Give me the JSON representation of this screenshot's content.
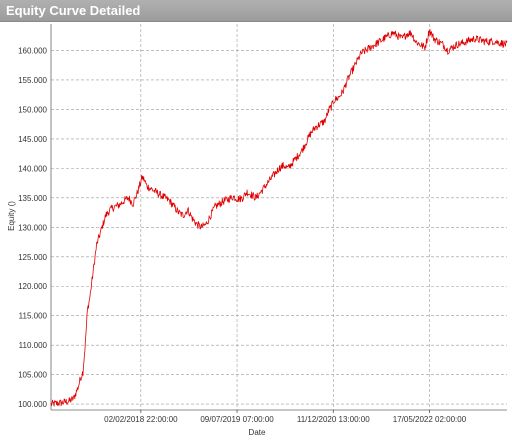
{
  "window": {
    "title": "Equity Curve Detailed"
  },
  "chart_data": {
    "type": "line",
    "xlabel": "Date",
    "ylabel": "Equity ()",
    "ylim": [
      99000,
      164500
    ],
    "yticks": [
      100000,
      105000,
      110000,
      115000,
      120000,
      125000,
      130000,
      135000,
      140000,
      145000,
      150000,
      155000,
      160000
    ],
    "ytick_labels": [
      "100.000",
      "105.000",
      "110.000",
      "115.000",
      "120.000",
      "125.000",
      "130.000",
      "135.000",
      "140.000",
      "145.000",
      "150.000",
      "155.000",
      "160.000"
    ],
    "xtick_labels": [
      "02/02/2018 22:00:00",
      "09/07/2019 07:00:00",
      "11/12/2020 13:00:00",
      "17/05/2022 02:00:00"
    ],
    "xticks_fraction": [
      0.197,
      0.408,
      0.619,
      0.83
    ],
    "grid": true,
    "line_color": "#e00000",
    "series": [
      {
        "x": [
          0.0,
          0.02,
          0.04,
          0.05,
          0.06,
          0.065,
          0.07,
          0.075,
          0.08,
          0.085,
          0.09,
          0.1,
          0.11,
          0.12,
          0.13,
          0.14,
          0.15,
          0.16,
          0.17,
          0.18,
          0.19,
          0.2,
          0.205,
          0.21,
          0.22,
          0.23,
          0.24,
          0.25,
          0.26,
          0.27,
          0.28,
          0.29,
          0.3,
          0.31,
          0.32,
          0.33,
          0.34,
          0.35,
          0.36,
          0.37,
          0.38,
          0.39,
          0.4,
          0.41,
          0.42,
          0.43,
          0.44,
          0.45,
          0.46,
          0.47,
          0.48,
          0.49,
          0.5,
          0.51,
          0.52,
          0.53,
          0.54,
          0.55,
          0.56,
          0.57,
          0.58,
          0.59,
          0.6,
          0.61,
          0.615,
          0.62,
          0.63,
          0.64,
          0.645,
          0.65,
          0.66,
          0.67,
          0.68,
          0.69,
          0.7,
          0.71,
          0.72,
          0.73,
          0.74,
          0.75,
          0.76,
          0.77,
          0.78,
          0.79,
          0.8,
          0.81,
          0.82,
          0.825,
          0.83,
          0.84,
          0.85,
          0.86,
          0.87,
          0.88,
          0.89,
          0.9,
          0.91,
          0.92,
          0.93,
          0.94,
          0.95,
          0.96,
          0.97,
          0.98,
          0.99,
          1.0
        ],
        "y": [
          100000,
          100200,
          100500,
          101000,
          103000,
          104500,
          105500,
          110000,
          116000,
          118000,
          121000,
          127000,
          129500,
          132000,
          133000,
          133500,
          133800,
          134500,
          135000,
          134000,
          136000,
          138500,
          138000,
          137000,
          136500,
          136000,
          135500,
          135000,
          134500,
          133500,
          132500,
          132000,
          133000,
          131500,
          130500,
          130000,
          130500,
          132000,
          133500,
          134000,
          134500,
          134800,
          135200,
          134800,
          135000,
          136000,
          135500,
          135000,
          136000,
          137000,
          138000,
          139000,
          140000,
          140500,
          140000,
          141000,
          142000,
          143000,
          144500,
          146000,
          147000,
          147500,
          148000,
          150000,
          150500,
          151500,
          152000,
          153000,
          154000,
          155000,
          156500,
          158000,
          159500,
          160000,
          160500,
          161000,
          161500,
          162000,
          162500,
          163000,
          162500,
          162000,
          162800,
          163000,
          161500,
          161000,
          160500,
          162000,
          163500,
          162000,
          161500,
          161000,
          160000,
          160500,
          161000,
          161200,
          161500,
          161800,
          162000,
          161800,
          161600,
          161500,
          161600,
          161400,
          161200,
          161000
        ]
      }
    ]
  }
}
